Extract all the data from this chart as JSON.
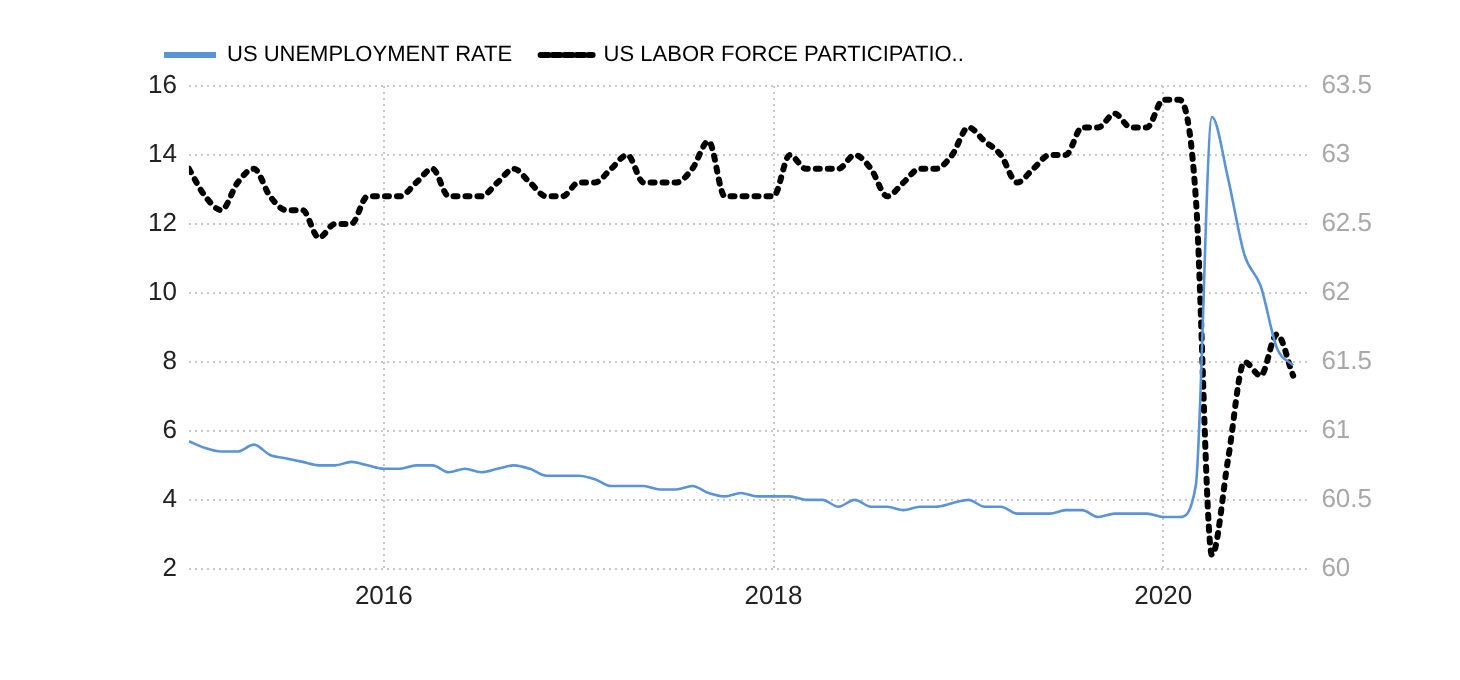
{
  "chart_data": {
    "type": "line",
    "legend": "top left",
    "grid": true,
    "marker": "none",
    "x": [
      "2015-01",
      "2015-02",
      "2015-03",
      "2015-04",
      "2015-05",
      "2015-06",
      "2015-07",
      "2015-08",
      "2015-09",
      "2015-10",
      "2015-11",
      "2015-12",
      "2016-01",
      "2016-02",
      "2016-03",
      "2016-04",
      "2016-05",
      "2016-06",
      "2016-07",
      "2016-08",
      "2016-09",
      "2016-10",
      "2016-11",
      "2016-12",
      "2017-01",
      "2017-02",
      "2017-03",
      "2017-04",
      "2017-05",
      "2017-06",
      "2017-07",
      "2017-08",
      "2017-09",
      "2017-10",
      "2017-11",
      "2017-12",
      "2018-01",
      "2018-02",
      "2018-03",
      "2018-04",
      "2018-05",
      "2018-06",
      "2018-07",
      "2018-08",
      "2018-09",
      "2018-10",
      "2018-11",
      "2018-12",
      "2019-01",
      "2019-02",
      "2019-03",
      "2019-04",
      "2019-05",
      "2019-06",
      "2019-07",
      "2019-08",
      "2019-09",
      "2019-10",
      "2019-11",
      "2019-12",
      "2020-01",
      "2020-02",
      "2020-03",
      "2020-04",
      "2020-05",
      "2020-06",
      "2020-07",
      "2020-08",
      "2020-09"
    ],
    "xlim": [
      "2015-01",
      "2020-10"
    ],
    "xticks": [
      "2016",
      "2018",
      "2020"
    ],
    "ylim": [
      2,
      16
    ],
    "yticks": [
      2,
      4,
      6,
      8,
      10,
      12,
      14,
      16
    ],
    "y2lim": [
      60,
      63.5
    ],
    "y2ticks": [
      60,
      60.5,
      61,
      61.5,
      62,
      62.5,
      63,
      63.5
    ],
    "series": [
      {
        "name": "US UNEMPLOYMENT RATE",
        "color": "#5b93d7",
        "line_style": "solid",
        "values": [
          5.7,
          5.5,
          5.4,
          5.4,
          5.6,
          5.3,
          5.2,
          5.1,
          5.0,
          5.0,
          5.1,
          5.0,
          4.9,
          4.9,
          5.0,
          5.0,
          4.8,
          4.9,
          4.8,
          4.9,
          5.0,
          4.9,
          4.7,
          4.7,
          4.7,
          4.6,
          4.4,
          4.4,
          4.4,
          4.3,
          4.3,
          4.4,
          4.2,
          4.1,
          4.2,
          4.1,
          4.1,
          4.1,
          4.0,
          4.0,
          3.8,
          4.0,
          3.8,
          3.8,
          3.7,
          3.8,
          3.8,
          3.9,
          4.0,
          3.8,
          3.8,
          3.6,
          3.6,
          3.6,
          3.7,
          3.7,
          3.5,
          3.6,
          3.6,
          3.6,
          3.5,
          3.5,
          4.4,
          15.1,
          13.3,
          11.1,
          10.2,
          8.4,
          7.9
        ]
      },
      {
        "name": "US LABOR FORCE PARTICIPATIO..",
        "color": "#000000",
        "line_style": "dotted",
        "axis": "y2",
        "values": [
          62.9,
          62.7,
          62.6,
          62.8,
          62.9,
          62.7,
          62.6,
          62.6,
          62.4,
          62.5,
          62.5,
          62.7,
          62.7,
          62.7,
          62.8,
          62.9,
          62.7,
          62.7,
          62.7,
          62.8,
          62.9,
          62.8,
          62.7,
          62.7,
          62.8,
          62.8,
          62.9,
          63.0,
          62.8,
          62.8,
          62.8,
          62.9,
          63.1,
          62.7,
          62.7,
          62.7,
          62.7,
          63.0,
          62.9,
          62.9,
          62.9,
          63.0,
          62.9,
          62.7,
          62.8,
          62.9,
          62.9,
          63.0,
          63.2,
          63.1,
          63.0,
          62.8,
          62.9,
          63.0,
          63.0,
          63.2,
          63.2,
          63.3,
          63.2,
          63.2,
          63.4,
          63.4,
          62.7,
          60.1,
          60.8,
          61.5,
          61.4,
          61.7,
          61.4
        ]
      }
    ]
  }
}
